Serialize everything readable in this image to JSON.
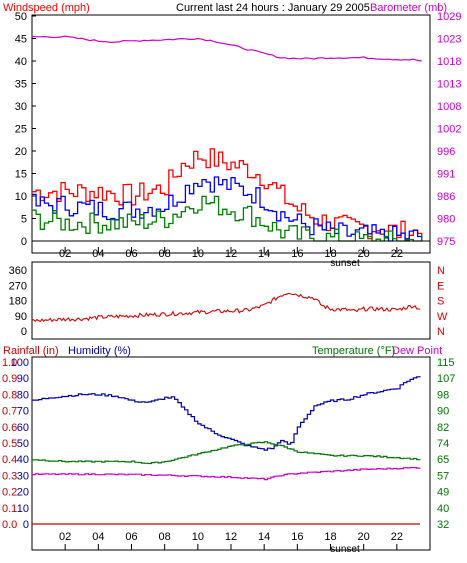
{
  "header": {
    "left_label": "Windspeed (mph)",
    "center_label": "Current last 24 hours : January 29 2005",
    "right_label": "Barometer (mb)"
  },
  "colors": {
    "wind_max": "#ff0000",
    "wind_avg": "#0000ff",
    "wind_min": "#008000",
    "barometer": "#cc00cc",
    "direction": "#dd0000",
    "humidity": "#0000aa",
    "temperature": "#007700",
    "dewpoint": "#cc00cc",
    "rainfall": "#cc0000"
  },
  "chart_data": [
    {
      "type": "line",
      "panel": "wind",
      "title": "",
      "ylabel": "Windspeed (mph)",
      "y2label": "Barometer (mb)",
      "ylim": [
        0,
        50
      ],
      "y2lim": [
        975,
        1029
      ],
      "yticks": [
        "0",
        "5",
        "10",
        "15",
        "20",
        "25",
        "30",
        "35",
        "40",
        "45",
        "50"
      ],
      "y2ticks": [
        "975",
        "980",
        "986",
        "991",
        "996",
        "1002",
        "1008",
        "1013",
        "1018",
        "1023",
        "1029"
      ],
      "xticks": [
        "02",
        "04",
        "06",
        "08",
        "10",
        "12",
        "14",
        "16",
        "18",
        "20",
        "22"
      ],
      "xannotation": "sunset",
      "series": [
        {
          "name": "max",
          "x": [
            0,
            2,
            4,
            6,
            8,
            9,
            10,
            11,
            12,
            13,
            14,
            15,
            16,
            17,
            18,
            19,
            20,
            21,
            22,
            23.5
          ],
          "values": [
            11,
            11,
            11,
            10,
            12,
            17,
            19,
            18,
            17,
            16,
            14,
            10,
            7,
            5,
            4,
            3,
            3,
            3,
            2,
            2
          ]
        },
        {
          "name": "avg",
          "x": [
            0,
            2,
            4,
            6,
            8,
            9,
            10,
            11,
            12,
            13,
            14,
            15,
            16,
            17,
            18,
            19,
            20,
            21,
            22,
            23.5
          ],
          "values": [
            8,
            8,
            7,
            7,
            8,
            11,
            14,
            13,
            12,
            11,
            9,
            6,
            4,
            3,
            2,
            1.5,
            1.5,
            1,
            1,
            1
          ]
        },
        {
          "name": "min",
          "x": [
            0,
            2,
            4,
            6,
            8,
            9,
            10,
            11,
            12,
            13,
            14,
            15,
            16,
            17,
            18,
            19,
            20,
            21,
            22,
            23.5
          ],
          "values": [
            5,
            4,
            4,
            4,
            5,
            7,
            9,
            8,
            7,
            6,
            4,
            2,
            1,
            1,
            0.5,
            0,
            0,
            0,
            0,
            0
          ]
        },
        {
          "name": "barometer",
          "axis": "right",
          "x": [
            0,
            1,
            2,
            3,
            4,
            5,
            6,
            7,
            8,
            9,
            10,
            11,
            12,
            13,
            14,
            15,
            16,
            17,
            18,
            19,
            20,
            21,
            22,
            23,
            23.5
          ],
          "values": [
            1024,
            1024,
            1024,
            1023.5,
            1023,
            1022.8,
            1023,
            1023.2,
            1023.3,
            1023.5,
            1023.6,
            1023,
            1022,
            1021,
            1020,
            1019,
            1018.8,
            1018.8,
            1019,
            1019,
            1019,
            1018.8,
            1018.6,
            1018.5,
            1018.2
          ]
        }
      ]
    },
    {
      "type": "line",
      "panel": "direction",
      "ylim": [
        0,
        360
      ],
      "yticks": [
        "0",
        "90",
        "180",
        "270",
        "360"
      ],
      "y2ticks": [
        "N",
        "W",
        "S",
        "E",
        "N"
      ],
      "series": [
        {
          "name": "direction",
          "x": [
            0,
            1,
            2,
            3,
            4,
            5,
            6,
            7,
            8,
            9,
            10,
            11,
            12,
            13,
            14,
            15,
            15.5,
            16,
            17,
            17.5,
            18,
            19,
            19.5,
            20,
            21,
            22,
            23,
            23.5
          ],
          "values": [
            60,
            65,
            70,
            72,
            80,
            85,
            90,
            95,
            100,
            105,
            110,
            115,
            118,
            122,
            150,
            210,
            230,
            215,
            195,
            150,
            130,
            125,
            115,
            130,
            130,
            125,
            150,
            125
          ]
        }
      ]
    },
    {
      "type": "line",
      "panel": "weather",
      "left_labels": {
        "rainfall": "Rainfall (in)",
        "humidity": "Humidity (%)"
      },
      "right_labels": {
        "temperature": "Temperature (°F)",
        "dewpoint": "Dew Point"
      },
      "ylim": [
        0,
        100
      ],
      "y_rain_ticks": [
        "0.0",
        "0.1",
        "0.2",
        "0.3",
        "0.4",
        "0.5",
        "0.6",
        "0.7",
        "0.8",
        "0.9",
        "1.0"
      ],
      "y_hum_ticks": [
        "0",
        "10",
        "20",
        "30",
        "40",
        "50",
        "60",
        "70",
        "80",
        "90",
        "100"
      ],
      "y2lim": [
        32,
        115
      ],
      "y2ticks": [
        "32",
        "40",
        "49",
        "57",
        "65",
        "74",
        "82",
        "90",
        "98",
        "107",
        "115"
      ],
      "xticks": [
        "02",
        "04",
        "06",
        "08",
        "10",
        "12",
        "14",
        "16",
        "18",
        "20",
        "22"
      ],
      "xannotation": "sunset",
      "series": [
        {
          "name": "humidity",
          "x": [
            0,
            1,
            2,
            3,
            4,
            5,
            6,
            7,
            8,
            8.5,
            9,
            10,
            11,
            12,
            13,
            14,
            14.5,
            15,
            15.5,
            16,
            17,
            18,
            19,
            20,
            21,
            22,
            22.5,
            23,
            23.5
          ],
          "values": [
            76,
            78,
            79,
            80,
            80,
            79,
            76,
            75,
            78,
            78,
            72,
            62,
            56,
            52,
            48,
            46,
            47,
            52,
            48,
            60,
            73,
            76,
            77,
            80,
            82,
            84,
            88,
            90,
            92
          ]
        },
        {
          "name": "temperature",
          "axis": "right",
          "x": [
            0,
            2,
            4,
            6,
            7,
            8,
            9,
            10,
            11,
            12,
            13,
            14,
            15,
            16,
            17,
            18,
            20,
            22,
            23.5
          ],
          "values": [
            65,
            64,
            64,
            64,
            63,
            64,
            66,
            68,
            70,
            72,
            73,
            74,
            72,
            69,
            68,
            67,
            67,
            66,
            65
          ]
        },
        {
          "name": "dew point",
          "axis": "right",
          "x": [
            0,
            2,
            4,
            6,
            8,
            10,
            12,
            14,
            15,
            16,
            18,
            20,
            22,
            23.5
          ],
          "values": [
            57.5,
            57.5,
            57.5,
            57.3,
            57,
            56.5,
            56,
            55,
            57,
            58,
            59,
            60,
            60.5,
            61
          ]
        },
        {
          "name": "rainfall",
          "x": [
            0,
            23.5
          ],
          "values": [
            0,
            0
          ]
        }
      ]
    }
  ]
}
